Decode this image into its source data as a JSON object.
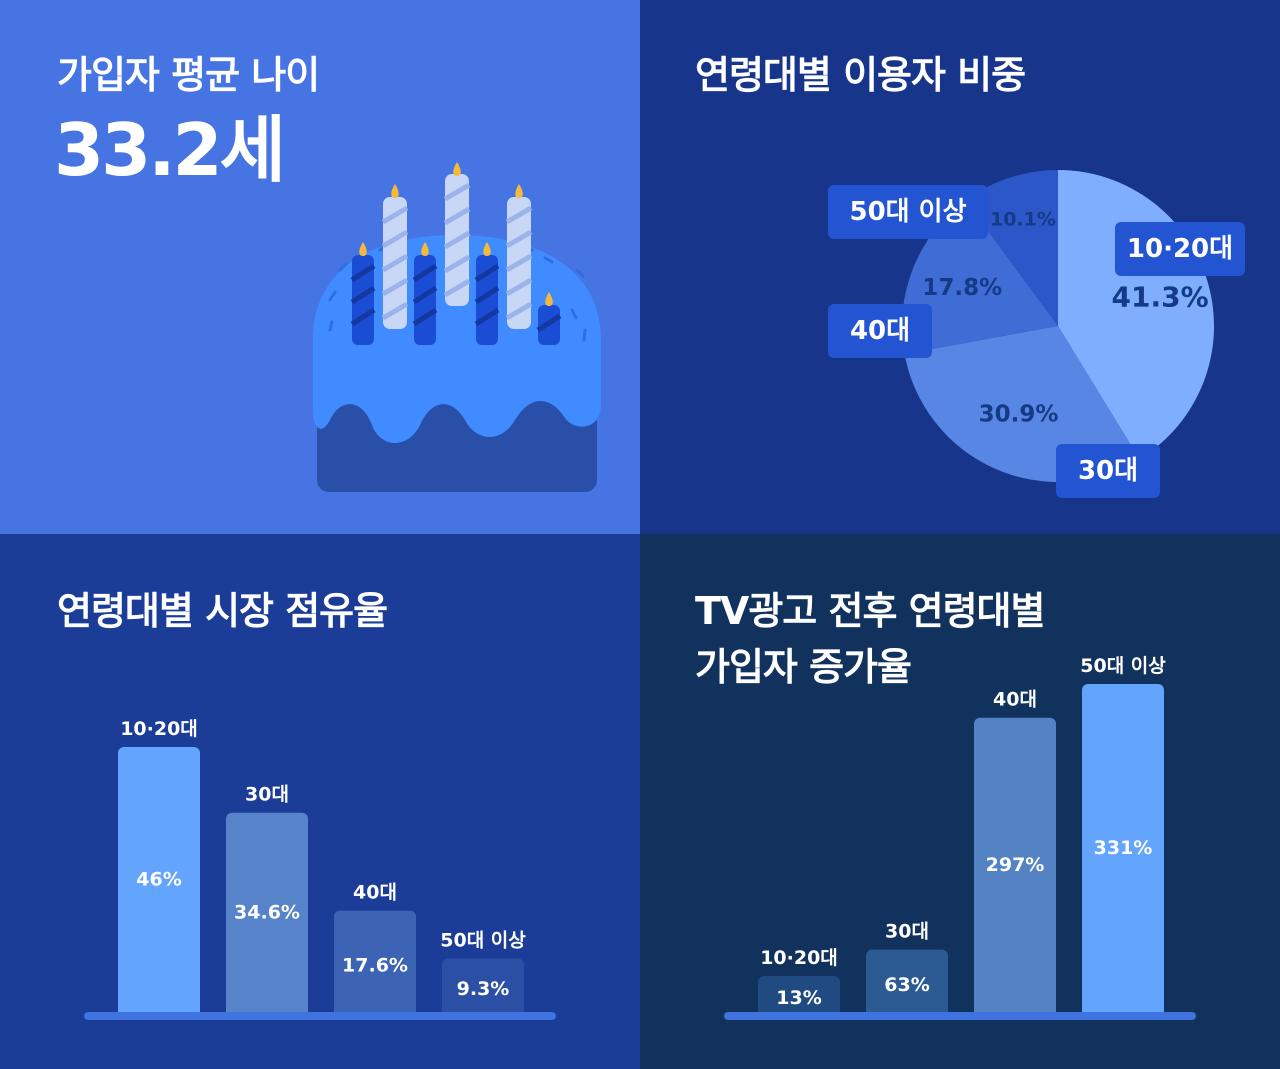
{
  "colors": {
    "panel1_bg": "#4674e3",
    "panel2_bg": "#17358a",
    "panel3_bg": "#1b3c97",
    "panel4_bg": "#12325e",
    "label_box": "#2354d2",
    "accent_light": "#63a4ff",
    "accent_mid": "#5683c9",
    "accent_dark": "#3d64b4"
  },
  "avg_age": {
    "title": "가입자 평균 나이",
    "value": "33.2세",
    "icon": "birthday-cake-icon"
  },
  "chart_data": [
    {
      "type": "pie",
      "title": "연령대별 이용자 비중",
      "categories": [
        "10·20대",
        "30대",
        "40대",
        "50대 이상"
      ],
      "values": [
        41.3,
        30.9,
        17.8,
        10.1
      ],
      "value_labels": [
        "41.3%",
        "30.9%",
        "17.8%",
        "10.1%"
      ],
      "colors": [
        "#7faeff",
        "#5886e4",
        "#3f6cd5",
        "#2c57c8"
      ]
    },
    {
      "type": "bar",
      "title": "연령대별 시장 점유율",
      "categories": [
        "10·20대",
        "30대",
        "40대",
        "50대 이상"
      ],
      "values": [
        46,
        34.6,
        17.6,
        9.3
      ],
      "value_labels": [
        "46%",
        "34.6%",
        "17.6%",
        "9.3%"
      ],
      "colors": [
        "#63a4ff",
        "#5683c9",
        "#3d64b4",
        "#2c4fa6"
      ],
      "ylim": [
        0,
        50
      ],
      "xlabel": "",
      "ylabel": ""
    },
    {
      "type": "bar",
      "title": "TV광고 전후 연령대별\n가입자 증가율",
      "title_lines": [
        "TV광고 전후 연령대별",
        "가입자 증가율"
      ],
      "categories": [
        "10·20대",
        "30대",
        "40대",
        "50대 이상"
      ],
      "values": [
        13,
        63,
        297,
        331
      ],
      "value_labels": [
        "13%",
        "63%",
        "297%",
        "331%"
      ],
      "colors": [
        "#1f4a82",
        "#2c5a93",
        "#5383c3",
        "#63a4ff"
      ],
      "ylim": [
        0,
        331
      ],
      "xlabel": "",
      "ylabel": ""
    }
  ]
}
